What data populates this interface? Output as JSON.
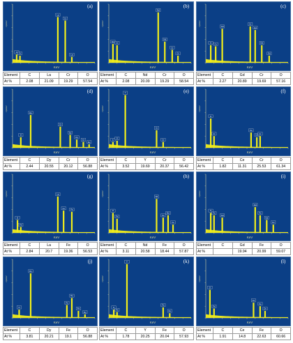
{
  "chart_data": [
    {
      "type": "bar",
      "panel_label": "(a)",
      "xlabel": "KeV",
      "ylabel": "cps/eV",
      "background": "#0b3f86",
      "bar_color": "#f2ee1a",
      "peaks": [
        {
          "label": "O",
          "pos": 0.05,
          "height": 0.14
        },
        {
          "label": "Cr",
          "pos": 0.09,
          "height": 0.12
        },
        {
          "label": "La",
          "pos": 0.55,
          "height": 0.78
        },
        {
          "label": "Cr",
          "pos": 0.64,
          "height": 0.72
        },
        {
          "label": "La",
          "pos": 0.72,
          "height": 0.1
        }
      ],
      "table": {
        "row_labels": [
          "Element",
          "At %"
        ],
        "elements": [
          "C",
          "La",
          "Cr",
          "O"
        ],
        "values": [
          "2.08",
          "21.09",
          "19.29",
          "57.54"
        ]
      }
    },
    {
      "type": "bar",
      "panel_label": "(b)",
      "xlabel": "KeV",
      "ylabel": "cps/eV",
      "background": "#0b3f86",
      "bar_color": "#f2ee1a",
      "peaks": [
        {
          "label": "Nd",
          "pos": 0.05,
          "height": 0.32
        },
        {
          "label": "Cr",
          "pos": 0.1,
          "height": 0.3
        },
        {
          "label": "Nd",
          "pos": 0.6,
          "height": 0.86
        },
        {
          "label": "Nd",
          "pos": 0.68,
          "height": 0.36
        },
        {
          "label": "Cr",
          "pos": 0.77,
          "height": 0.22
        },
        {
          "label": "Cr",
          "pos": 0.84,
          "height": 0.12
        }
      ],
      "table": {
        "row_labels": [
          "Element",
          "At %"
        ],
        "elements": [
          "C",
          "Nd",
          "Cr",
          "O"
        ],
        "values": [
          "2.08",
          "20.09",
          "19.29",
          "58.54"
        ]
      }
    },
    {
      "type": "bar",
      "panel_label": "(c)",
      "xlabel": "KeV",
      "ylabel": "cps/eV",
      "background": "#0b3f86",
      "bar_color": "#f2ee1a",
      "peaks": [
        {
          "label": "O",
          "pos": 0.06,
          "height": 0.3
        },
        {
          "label": "Cr",
          "pos": 0.12,
          "height": 0.28
        },
        {
          "label": "Gd",
          "pos": 0.2,
          "height": 0.58
        },
        {
          "label": "Cr",
          "pos": 0.54,
          "height": 0.62
        },
        {
          "label": "Gd",
          "pos": 0.6,
          "height": 0.56
        },
        {
          "label": "Gd",
          "pos": 0.68,
          "height": 0.3
        },
        {
          "label": "Gd",
          "pos": 0.77,
          "height": 0.12
        }
      ],
      "table": {
        "row_labels": [
          "Element",
          "At %"
        ],
        "elements": [
          "C",
          "Gd",
          "Cr",
          "O"
        ],
        "values": [
          "2.27",
          "20.89",
          "19.69",
          "57.16"
        ]
      }
    },
    {
      "type": "bar",
      "panel_label": "(d)",
      "xlabel": "KeV",
      "ylabel": "cps/eV",
      "background": "#0b3f86",
      "bar_color": "#f2ee1a",
      "peaks": [
        {
          "label": "O",
          "pos": 0.1,
          "height": 0.18
        },
        {
          "label": "Dy",
          "pos": 0.22,
          "height": 0.56
        },
        {
          "label": "Cr",
          "pos": 0.58,
          "height": 0.36
        },
        {
          "label": "Dy",
          "pos": 0.7,
          "height": 0.22
        },
        {
          "label": "Dy",
          "pos": 0.78,
          "height": 0.14
        },
        {
          "label": "Cr",
          "pos": 0.86,
          "height": 0.1
        },
        {
          "label": "Dy",
          "pos": 0.93,
          "height": 0.06
        }
      ],
      "table": {
        "row_labels": [
          "Element",
          "At %"
        ],
        "elements": [
          "C",
          "Dy",
          "Cr",
          "O"
        ],
        "values": [
          "2.44",
          "20.55",
          "20.12",
          "56.88"
        ]
      }
    },
    {
      "type": "bar",
      "panel_label": "(e)",
      "xlabel": "KeV",
      "ylabel": "cps/eV",
      "background": "#0b3f86",
      "bar_color": "#f2ee1a",
      "peaks": [
        {
          "label": "C",
          "pos": 0.05,
          "height": 0.1
        },
        {
          "label": "O",
          "pos": 0.1,
          "height": 0.12
        },
        {
          "label": "Y",
          "pos": 0.2,
          "height": 0.9
        },
        {
          "label": "Cr",
          "pos": 0.58,
          "height": 0.3
        },
        {
          "label": "Cr",
          "pos": 0.66,
          "height": 0.1
        }
      ],
      "table": {
        "row_labels": [
          "Element",
          "At %"
        ],
        "elements": [
          "C",
          "Y",
          "Cr",
          "O"
        ],
        "values": [
          "3.52",
          "19.69",
          "20.37",
          "56.42"
        ]
      }
    },
    {
      "type": "bar",
      "panel_label": "(f)",
      "xlabel": "KeV",
      "ylabel": "cps/eV",
      "background": "#0b3f86",
      "bar_color": "#f2ee1a",
      "peaks": [
        {
          "label": "O",
          "pos": 0.06,
          "height": 0.5
        },
        {
          "label": "Cr",
          "pos": 0.1,
          "height": 0.2
        },
        {
          "label": "Ce",
          "pos": 0.55,
          "height": 0.26
        },
        {
          "label": "Ce",
          "pos": 0.62,
          "height": 0.18
        },
        {
          "label": "Cr",
          "pos": 0.66,
          "height": 0.2
        }
      ],
      "table": {
        "row_labels": [
          "Element",
          "At %"
        ],
        "elements": [
          "C",
          "Ce",
          "Cr",
          "O"
        ],
        "values": [
          "1.82",
          "11.31",
          "25.53",
          "61.34"
        ]
      }
    },
    {
      "type": "bar",
      "panel_label": "(g)",
      "xlabel": "KeV",
      "ylabel": "cps/eV",
      "background": "#0b3f86",
      "bar_color": "#f2ee1a",
      "peaks": [
        {
          "label": "O",
          "pos": 0.06,
          "height": 0.22
        },
        {
          "label": "Fe",
          "pos": 0.1,
          "height": 0.1
        },
        {
          "label": "La",
          "pos": 0.55,
          "height": 0.62
        },
        {
          "label": "La",
          "pos": 0.62,
          "height": 0.38
        },
        {
          "label": "Fe",
          "pos": 0.72,
          "height": 0.36
        }
      ],
      "table": {
        "row_labels": [
          "Element",
          "At %"
        ],
        "elements": [
          "C",
          "La",
          "Fe",
          "O"
        ],
        "values": [
          "2.84",
          "20.7",
          "19.36",
          "56.53"
        ]
      }
    },
    {
      "type": "bar",
      "panel_label": "(h)",
      "xlabel": "KeV",
      "ylabel": "cps/eV",
      "background": "#0b3f86",
      "bar_color": "#f2ee1a",
      "peaks": [
        {
          "label": "O",
          "pos": 0.05,
          "height": 0.34
        },
        {
          "label": "Fe",
          "pos": 0.1,
          "height": 0.24
        },
        {
          "label": "Nd",
          "pos": 0.58,
          "height": 0.58
        },
        {
          "label": "Fe",
          "pos": 0.66,
          "height": 0.26
        },
        {
          "label": "Nd",
          "pos": 0.72,
          "height": 0.3
        },
        {
          "label": "Fe",
          "pos": 0.78,
          "height": 0.14
        }
      ],
      "table": {
        "row_labels": [
          "Element",
          "At %"
        ],
        "elements": [
          "C",
          "Nd",
          "Fe",
          "O"
        ],
        "values": [
          "3.11",
          "20.58",
          "18.44",
          "57.87"
        ]
      }
    },
    {
      "type": "bar",
      "panel_label": "(i)",
      "xlabel": "KeV",
      "ylabel": "cps/eV",
      "background": "#0b3f86",
      "bar_color": "#f2ee1a",
      "peaks": [
        {
          "label": "O",
          "pos": 0.06,
          "height": 0.34
        },
        {
          "label": "Fe",
          "pos": 0.1,
          "height": 0.3
        },
        {
          "label": "Gd",
          "pos": 0.2,
          "height": 0.26
        },
        {
          "label": "Gd",
          "pos": 0.6,
          "height": 0.44
        },
        {
          "label": "Fe",
          "pos": 0.66,
          "height": 0.3
        },
        {
          "label": "Gd",
          "pos": 0.74,
          "height": 0.22
        },
        {
          "label": "Fe",
          "pos": 0.82,
          "height": 0.14
        }
      ],
      "table": {
        "row_labels": [
          "Element",
          "At %"
        ],
        "elements": [
          "C",
          "Gd",
          "Fe",
          "O"
        ],
        "values": [
          "",
          "19.94",
          "20.99",
          "59.07"
        ]
      }
    },
    {
      "type": "bar",
      "panel_label": "(j)",
      "xlabel": "KeV",
      "ylabel": "cps/eV",
      "background": "#0b3f86",
      "bar_color": "#f2ee1a",
      "peaks": [
        {
          "label": "O",
          "pos": 0.08,
          "height": 0.14
        },
        {
          "label": "Dy",
          "pos": 0.22,
          "height": 0.76
        },
        {
          "label": "Fe",
          "pos": 0.66,
          "height": 0.22
        },
        {
          "label": "Dy",
          "pos": 0.72,
          "height": 0.34
        },
        {
          "label": "Fe",
          "pos": 0.8,
          "height": 0.12
        },
        {
          "label": "Dy",
          "pos": 0.88,
          "height": 0.06
        }
      ],
      "table": {
        "row_labels": [
          "Element",
          "At %"
        ],
        "elements": [
          "C",
          "Dy",
          "Fe",
          "O"
        ],
        "values": [
          "3.81",
          "20.21",
          "19.1",
          "56.88"
        ]
      }
    },
    {
      "type": "bar",
      "panel_label": "(k)",
      "xlabel": "KeV",
      "ylabel": "cps/eV",
      "background": "#0b3f86",
      "bar_color": "#f2ee1a",
      "peaks": [
        {
          "label": "O",
          "pos": 0.06,
          "height": 0.14
        },
        {
          "label": "Fe",
          "pos": 0.1,
          "height": 0.1
        },
        {
          "label": "Y",
          "pos": 0.22,
          "height": 0.92
        },
        {
          "label": "Fe",
          "pos": 0.66,
          "height": 0.18
        },
        {
          "label": "Fe",
          "pos": 0.74,
          "height": 0.08
        }
      ],
      "table": {
        "row_labels": [
          "Element",
          "At %"
        ],
        "elements": [
          "C",
          "Y",
          "Fe",
          "O"
        ],
        "values": [
          "1.78",
          "20.25",
          "20.04",
          "57.93"
        ]
      }
    },
    {
      "type": "bar",
      "panel_label": "(l)",
      "xlabel": "KeV",
      "ylabel": "cps/eV",
      "background": "#0b3f86",
      "bar_color": "#f2ee1a",
      "peaks": [
        {
          "label": "O",
          "pos": 0.05,
          "height": 0.48
        },
        {
          "label": "Fe",
          "pos": 0.1,
          "height": 0.16
        },
        {
          "label": "Ce",
          "pos": 0.58,
          "height": 0.26
        },
        {
          "label": "Fe",
          "pos": 0.66,
          "height": 0.2
        },
        {
          "label": "Ce",
          "pos": 0.72,
          "height": 0.12
        }
      ],
      "table": {
        "row_labels": [
          "Element",
          "At %"
        ],
        "elements": [
          "C",
          "Ce",
          "Fe",
          "O"
        ],
        "values": [
          "1.91",
          "14.8",
          "22.63",
          "60.66"
        ]
      }
    }
  ]
}
